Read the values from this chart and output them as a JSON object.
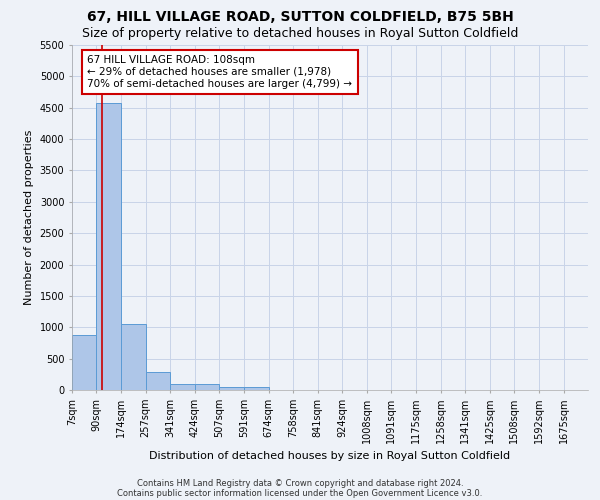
{
  "title": "67, HILL VILLAGE ROAD, SUTTON COLDFIELD, B75 5BH",
  "subtitle": "Size of property relative to detached houses in Royal Sutton Coldfield",
  "xlabel": "Distribution of detached houses by size in Royal Sutton Coldfield",
  "ylabel": "Number of detached properties",
  "footnote1": "Contains HM Land Registry data © Crown copyright and database right 2024.",
  "footnote2": "Contains public sector information licensed under the Open Government Licence v3.0.",
  "bin_labels": [
    "7sqm",
    "90sqm",
    "174sqm",
    "257sqm",
    "341sqm",
    "424sqm",
    "507sqm",
    "591sqm",
    "674sqm",
    "758sqm",
    "841sqm",
    "924sqm",
    "1008sqm",
    "1091sqm",
    "1175sqm",
    "1258sqm",
    "1341sqm",
    "1425sqm",
    "1508sqm",
    "1592sqm",
    "1675sqm"
  ],
  "bin_left_edges": [
    7,
    90,
    174,
    257,
    341,
    424,
    507,
    591,
    674,
    758,
    841,
    924,
    1008,
    1091,
    1175,
    1258,
    1341,
    1425,
    1508,
    1592,
    1675
  ],
  "bar_heights": [
    880,
    4580,
    1060,
    290,
    100,
    90,
    55,
    55,
    0,
    0,
    0,
    0,
    0,
    0,
    0,
    0,
    0,
    0,
    0,
    0
  ],
  "bar_color": "#aec6e8",
  "bar_edge_color": "#5b9bd5",
  "property_sqm": 108,
  "red_line_color": "#cc0000",
  "annotation_box_color": "#cc0000",
  "annotation_text_line1": "67 HILL VILLAGE ROAD: 108sqm",
  "annotation_text_line2": "← 29% of detached houses are smaller (1,978)",
  "annotation_text_line3": "70% of semi-detached houses are larger (4,799) →",
  "ylim": [
    0,
    5500
  ],
  "yticks": [
    0,
    500,
    1000,
    1500,
    2000,
    2500,
    3000,
    3500,
    4000,
    4500,
    5000,
    5500
  ],
  "background_color": "#eef2f8",
  "plot_background_color": "#eef2f8",
  "grid_color": "#c8d4e8",
  "title_fontsize": 10,
  "subtitle_fontsize": 9,
  "axis_label_fontsize": 8,
  "tick_fontsize": 7,
  "annotation_fontsize": 7.5,
  "footnote_fontsize": 6
}
